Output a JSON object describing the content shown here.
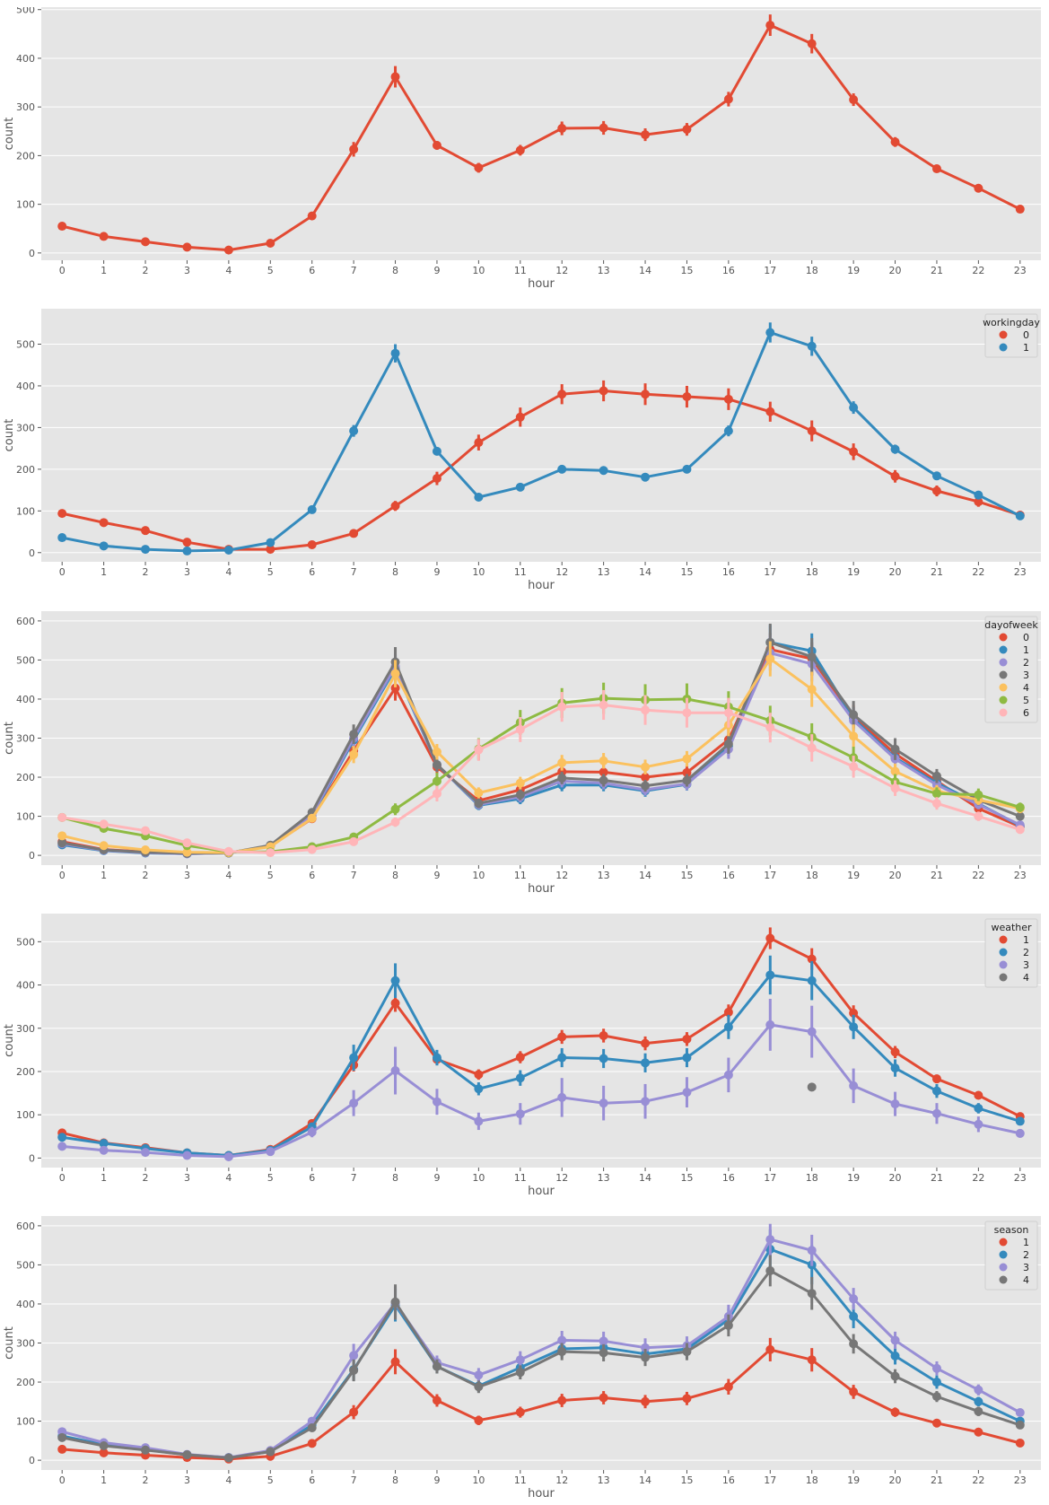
{
  "palette": [
    "#E24A33",
    "#348ABD",
    "#988ED5",
    "#777777",
    "#FBC15E",
    "#8EBA42",
    "#FFB5B8"
  ],
  "panel_background": "#E5E5E5",
  "grid_color": "#FFFFFF",
  "chart_data": [
    {
      "type": "line",
      "xlabel": "hour",
      "ylabel": "count",
      "ylim": [
        -15,
        505
      ],
      "yticks": [
        0,
        100,
        200,
        300,
        400,
        500
      ],
      "categories": [
        "0",
        "1",
        "2",
        "3",
        "4",
        "5",
        "6",
        "7",
        "8",
        "9",
        "10",
        "11",
        "12",
        "13",
        "14",
        "15",
        "16",
        "17",
        "18",
        "19",
        "20",
        "21",
        "22",
        "23"
      ],
      "legend": null,
      "series": [
        {
          "values": [
            55,
            34,
            23,
            12,
            6,
            20,
            76,
            213,
            362,
            221,
            175,
            211,
            256,
            257,
            243,
            254,
            316,
            468,
            430,
            315,
            228,
            173,
            133,
            90
          ],
          "err": [
            4,
            3,
            2,
            2,
            1,
            3,
            6,
            15,
            22,
            9,
            10,
            11,
            14,
            14,
            13,
            13,
            15,
            22,
            20,
            13,
            10,
            8,
            6,
            5
          ]
        }
      ]
    },
    {
      "type": "line",
      "xlabel": "hour",
      "ylabel": "count",
      "ylim": [
        -22,
        585
      ],
      "yticks": [
        0,
        100,
        200,
        300,
        400,
        500
      ],
      "categories": [
        "0",
        "1",
        "2",
        "3",
        "4",
        "5",
        "6",
        "7",
        "8",
        "9",
        "10",
        "11",
        "12",
        "13",
        "14",
        "15",
        "16",
        "17",
        "18",
        "19",
        "20",
        "21",
        "22",
        "23"
      ],
      "legend": {
        "title": "workingday",
        "position": "top-right"
      },
      "series": [
        {
          "name": "0",
          "values": [
            94,
            72,
            53,
            25,
            8,
            8,
            19,
            46,
            112,
            178,
            264,
            325,
            380,
            388,
            380,
            374,
            368,
            338,
            292,
            242,
            183,
            148,
            122,
            90
          ],
          "err": [
            7,
            6,
            5,
            3,
            2,
            2,
            3,
            6,
            12,
            16,
            19,
            23,
            24,
            25,
            26,
            26,
            26,
            24,
            25,
            20,
            15,
            13,
            12,
            10
          ]
        },
        {
          "name": "1",
          "values": [
            36,
            16,
            8,
            4,
            6,
            24,
            103,
            292,
            478,
            243,
            133,
            157,
            200,
            197,
            181,
            200,
            292,
            528,
            495,
            348,
            248,
            184,
            138,
            88
          ],
          "err": [
            3,
            2,
            1,
            1,
            1,
            2,
            6,
            14,
            22,
            9,
            6,
            7,
            8,
            8,
            7,
            9,
            13,
            24,
            23,
            15,
            11,
            8,
            6,
            5
          ]
        }
      ]
    },
    {
      "type": "line",
      "xlabel": "hour",
      "ylabel": "count",
      "ylim": [
        -25,
        625
      ],
      "yticks": [
        0,
        100,
        200,
        300,
        400,
        500,
        600
      ],
      "categories": [
        "0",
        "1",
        "2",
        "3",
        "4",
        "5",
        "6",
        "7",
        "8",
        "9",
        "10",
        "11",
        "12",
        "13",
        "14",
        "15",
        "16",
        "17",
        "18",
        "19",
        "20",
        "21",
        "22",
        "23"
      ],
      "legend": {
        "title": "dayofweek",
        "position": "top-right"
      },
      "series": [
        {
          "name": "0",
          "values": [
            35,
            15,
            9,
            5,
            6,
            24,
            94,
            268,
            428,
            226,
            140,
            168,
            214,
            213,
            200,
            212,
            296,
            527,
            503,
            355,
            260,
            190,
            120,
            73
          ],
          "err": [
            4,
            3,
            2,
            1,
            1,
            3,
            9,
            22,
            32,
            18,
            14,
            16,
            20,
            20,
            20,
            21,
            28,
            42,
            42,
            30,
            22,
            17,
            12,
            8
          ]
        },
        {
          "name": "1",
          "values": [
            27,
            12,
            6,
            4,
            6,
            24,
            100,
            295,
            478,
            232,
            128,
            145,
            180,
            180,
            165,
            182,
            280,
            545,
            523,
            350,
            250,
            185,
            132,
            76
          ],
          "err": [
            3,
            2,
            1,
            1,
            1,
            3,
            10,
            25,
            35,
            18,
            12,
            14,
            16,
            16,
            15,
            16,
            25,
            45,
            45,
            30,
            22,
            16,
            12,
            8
          ]
        },
        {
          "name": "2",
          "values": [
            30,
            13,
            7,
            4,
            6,
            24,
            103,
            300,
            483,
            232,
            130,
            150,
            190,
            185,
            168,
            183,
            272,
            518,
            490,
            345,
            247,
            180,
            130,
            78
          ],
          "err": [
            3,
            2,
            1,
            1,
            1,
            3,
            10,
            25,
            35,
            18,
            12,
            14,
            16,
            16,
            15,
            16,
            25,
            45,
            45,
            30,
            22,
            16,
            12,
            8
          ]
        },
        {
          "name": "3",
          "values": [
            32,
            14,
            8,
            5,
            6,
            26,
            110,
            310,
            495,
            232,
            133,
            155,
            198,
            192,
            178,
            192,
            285,
            545,
            508,
            360,
            272,
            203,
            142,
            100
          ],
          "err": [
            3,
            2,
            1,
            1,
            1,
            3,
            10,
            25,
            38,
            18,
            12,
            14,
            16,
            16,
            15,
            16,
            25,
            48,
            48,
            35,
            28,
            18,
            14,
            10
          ]
        },
        {
          "name": "4",
          "values": [
            50,
            25,
            14,
            8,
            7,
            22,
            95,
            258,
            465,
            265,
            160,
            185,
            237,
            242,
            226,
            247,
            333,
            503,
            425,
            305,
            215,
            165,
            142,
            120
          ],
          "err": [
            5,
            3,
            2,
            1,
            1,
            3,
            9,
            22,
            35,
            20,
            14,
            16,
            20,
            20,
            19,
            20,
            28,
            45,
            45,
            30,
            20,
            15,
            13,
            12
          ]
        },
        {
          "name": "5",
          "values": [
            97,
            69,
            50,
            25,
            9,
            9,
            22,
            47,
            118,
            190,
            272,
            340,
            390,
            402,
            398,
            400,
            380,
            345,
            303,
            250,
            188,
            158,
            155,
            123
          ],
          "err": [
            8,
            7,
            5,
            3,
            2,
            2,
            3,
            7,
            15,
            22,
            28,
            32,
            38,
            40,
            40,
            40,
            40,
            38,
            35,
            28,
            20,
            16,
            16,
            12
          ]
        },
        {
          "name": "6",
          "values": [
            97,
            80,
            63,
            32,
            10,
            7,
            15,
            35,
            85,
            158,
            270,
            322,
            380,
            385,
            372,
            365,
            365,
            327,
            275,
            227,
            172,
            133,
            100,
            66
          ],
          "err": [
            8,
            7,
            6,
            4,
            2,
            2,
            3,
            5,
            12,
            20,
            28,
            32,
            38,
            38,
            38,
            38,
            38,
            38,
            35,
            28,
            20,
            16,
            12,
            8
          ]
        }
      ]
    },
    {
      "type": "line",
      "xlabel": "hour",
      "ylabel": "count",
      "ylim": [
        -22,
        565
      ],
      "yticks": [
        0,
        100,
        200,
        300,
        400,
        500
      ],
      "categories": [
        "0",
        "1",
        "2",
        "3",
        "4",
        "5",
        "6",
        "7",
        "8",
        "9",
        "10",
        "11",
        "12",
        "13",
        "14",
        "15",
        "16",
        "17",
        "18",
        "19",
        "20",
        "21",
        "22",
        "23"
      ],
      "legend": {
        "title": "weather",
        "position": "top-right"
      },
      "series": [
        {
          "name": "1",
          "values": [
            58,
            35,
            24,
            12,
            6,
            20,
            80,
            215,
            358,
            228,
            193,
            233,
            280,
            283,
            265,
            275,
            337,
            508,
            460,
            335,
            245,
            183,
            145,
            96
          ],
          "err": [
            4,
            3,
            2,
            2,
            1,
            3,
            6,
            15,
            20,
            12,
            12,
            14,
            16,
            16,
            16,
            16,
            18,
            25,
            25,
            18,
            14,
            10,
            8,
            6
          ]
        },
        {
          "name": "2",
          "values": [
            48,
            34,
            22,
            12,
            6,
            18,
            72,
            232,
            410,
            232,
            160,
            185,
            232,
            230,
            220,
            232,
            303,
            423,
            410,
            303,
            208,
            155,
            115,
            85
          ],
          "err": [
            6,
            5,
            4,
            2,
            1,
            4,
            10,
            30,
            40,
            18,
            15,
            18,
            22,
            22,
            22,
            22,
            28,
            45,
            45,
            28,
            20,
            16,
            12,
            8
          ]
        },
        {
          "name": "3",
          "values": [
            27,
            18,
            13,
            6,
            3,
            15,
            60,
            127,
            202,
            130,
            85,
            102,
            140,
            127,
            131,
            152,
            192,
            308,
            292,
            167,
            125,
            103,
            78,
            57
          ],
          "err": [
            5,
            4,
            3,
            2,
            1,
            4,
            12,
            30,
            55,
            30,
            20,
            25,
            45,
            40,
            40,
            35,
            40,
            60,
            60,
            40,
            28,
            24,
            18,
            10
          ]
        },
        {
          "name": "4",
          "values": [
            null,
            null,
            null,
            null,
            null,
            null,
            null,
            null,
            null,
            null,
            null,
            null,
            null,
            null,
            null,
            null,
            null,
            null,
            164,
            null,
            null,
            null,
            null,
            null
          ],
          "err": [
            0,
            0,
            0,
            0,
            0,
            0,
            0,
            0,
            0,
            0,
            0,
            0,
            0,
            0,
            0,
            0,
            0,
            0,
            0,
            0,
            0,
            0,
            0,
            0
          ]
        }
      ]
    },
    {
      "type": "line",
      "xlabel": "hour",
      "ylabel": "count",
      "ylim": [
        -25,
        625
      ],
      "yticks": [
        0,
        100,
        200,
        300,
        400,
        500,
        600
      ],
      "categories": [
        "0",
        "1",
        "2",
        "3",
        "4",
        "5",
        "6",
        "7",
        "8",
        "9",
        "10",
        "11",
        "12",
        "13",
        "14",
        "15",
        "16",
        "17",
        "18",
        "19",
        "20",
        "21",
        "22",
        "23"
      ],
      "legend": {
        "title": "season",
        "position": "top-right"
      },
      "series": [
        {
          "name": "1",
          "values": [
            28,
            19,
            13,
            7,
            3,
            10,
            43,
            123,
            252,
            153,
            102,
            123,
            153,
            160,
            150,
            158,
            188,
            283,
            257,
            175,
            123,
            95,
            72,
            44
          ],
          "err": [
            3,
            2,
            2,
            1,
            1,
            2,
            5,
            18,
            32,
            16,
            12,
            14,
            17,
            17,
            17,
            17,
            20,
            30,
            30,
            18,
            12,
            9,
            7,
            5
          ]
        },
        {
          "name": "2",
          "values": [
            62,
            40,
            27,
            14,
            7,
            22,
            90,
            232,
            397,
            240,
            190,
            237,
            285,
            288,
            272,
            285,
            360,
            540,
            500,
            368,
            267,
            200,
            150,
            100
          ],
          "err": [
            6,
            5,
            4,
            2,
            1,
            4,
            9,
            28,
            42,
            18,
            16,
            20,
            22,
            22,
            22,
            22,
            28,
            50,
            50,
            30,
            22,
            17,
            12,
            9
          ]
        },
        {
          "name": "3",
          "values": [
            73,
            45,
            32,
            15,
            7,
            25,
            100,
            268,
            402,
            250,
            218,
            257,
            307,
            305,
            288,
            293,
            368,
            565,
            537,
            413,
            307,
            235,
            180,
            122
          ],
          "err": [
            6,
            5,
            4,
            2,
            1,
            4,
            10,
            30,
            42,
            18,
            18,
            22,
            24,
            24,
            24,
            24,
            30,
            40,
            40,
            28,
            22,
            18,
            14,
            10
          ]
        },
        {
          "name": "4",
          "values": [
            58,
            37,
            26,
            14,
            6,
            22,
            83,
            230,
            405,
            240,
            188,
            225,
            278,
            275,
            263,
            278,
            345,
            485,
            427,
            298,
            215,
            163,
            125,
            90
          ],
          "err": [
            5,
            4,
            3,
            2,
            1,
            3,
            8,
            28,
            45,
            18,
            16,
            18,
            22,
            22,
            22,
            22,
            28,
            40,
            42,
            25,
            18,
            14,
            12,
            8
          ]
        }
      ]
    }
  ]
}
